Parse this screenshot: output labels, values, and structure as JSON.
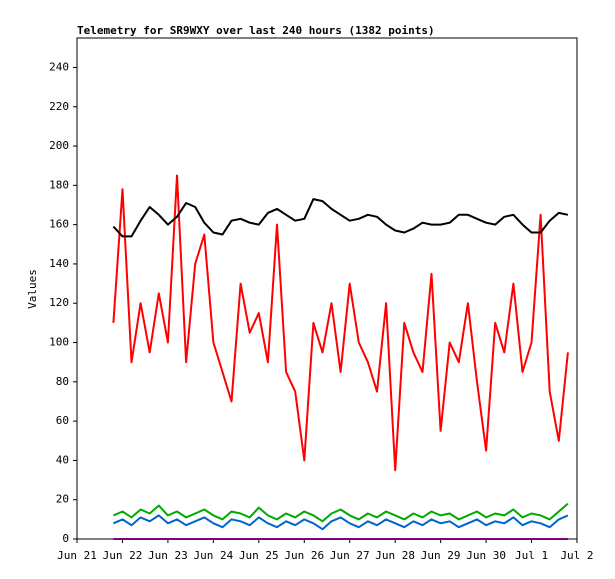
{
  "chart_data": {
    "type": "line",
    "title": "Telemetry for SR9WXY over last 240 hours (1382 points)",
    "y_label": "Values",
    "xlim": [
      0,
      11
    ],
    "xticks": [
      {
        "value": 0,
        "label": "Jun 21"
      },
      {
        "value": 1,
        "label": "Jun 22"
      },
      {
        "value": 2,
        "label": "Jun 23"
      },
      {
        "value": 3,
        "label": "Jun 24"
      },
      {
        "value": 4,
        "label": "Jun 25"
      },
      {
        "value": 5,
        "label": "Jun 26"
      },
      {
        "value": 6,
        "label": "Jun 27"
      },
      {
        "value": 7,
        "label": "Jun 28"
      },
      {
        "value": 8,
        "label": "Jun 29"
      },
      {
        "value": 9,
        "label": "Jun 30"
      },
      {
        "value": 10,
        "label": "Jul 1"
      },
      {
        "value": 11,
        "label": "Jul 2"
      }
    ],
    "ylim": [
      0,
      255
    ],
    "yticks": [
      0,
      20,
      40,
      60,
      80,
      100,
      120,
      140,
      160,
      180,
      200,
      220,
      240
    ],
    "grid": false,
    "x": [
      0.8,
      1.0,
      1.2,
      1.4,
      1.6,
      1.8,
      2.0,
      2.2,
      2.4,
      2.6,
      2.8,
      3.0,
      3.2,
      3.4,
      3.6,
      3.8,
      4.0,
      4.2,
      4.4,
      4.6,
      4.8,
      5.0,
      5.2,
      5.4,
      5.6,
      5.8,
      6.0,
      6.2,
      6.4,
      6.6,
      6.8,
      7.0,
      7.2,
      7.4,
      7.6,
      7.8,
      8.0,
      8.2,
      8.4,
      8.6,
      8.8,
      9.0,
      9.2,
      9.4,
      9.6,
      9.8,
      10.0,
      10.2,
      10.4,
      10.6,
      10.8
    ],
    "series": [
      {
        "color": "#ff0000",
        "values": [
          110,
          178,
          90,
          120,
          95,
          125,
          100,
          185,
          90,
          140,
          155,
          100,
          85,
          70,
          130,
          105,
          115,
          90,
          160,
          85,
          75,
          40,
          110,
          95,
          120,
          85,
          130,
          100,
          90,
          75,
          120,
          35,
          110,
          95,
          85,
          135,
          55,
          100,
          90,
          120,
          80,
          45,
          110,
          95,
          130,
          85,
          100,
          165,
          75,
          50,
          95
        ]
      },
      {
        "color": "#00aa00",
        "values": [
          12,
          14,
          11,
          15,
          13,
          17,
          12,
          14,
          11,
          13,
          15,
          12,
          10,
          14,
          13,
          11,
          16,
          12,
          10,
          13,
          11,
          14,
          12,
          9,
          13,
          15,
          12,
          10,
          13,
          11,
          14,
          12,
          10,
          13,
          11,
          14,
          12,
          13,
          10,
          12,
          14,
          11,
          13,
          12,
          15,
          11,
          13,
          12,
          10,
          14,
          18
        ]
      },
      {
        "color": "#0066cc",
        "values": [
          8,
          10,
          7,
          11,
          9,
          12,
          8,
          10,
          7,
          9,
          11,
          8,
          6,
          10,
          9,
          7,
          11,
          8,
          6,
          9,
          7,
          10,
          8,
          5,
          9,
          11,
          8,
          6,
          9,
          7,
          10,
          8,
          6,
          9,
          7,
          10,
          8,
          9,
          6,
          8,
          10,
          7,
          9,
          8,
          11,
          7,
          9,
          8,
          6,
          10,
          12
        ]
      },
      {
        "color": "#000000",
        "values": [
          159,
          154,
          154,
          162,
          169,
          165,
          160,
          164,
          171,
          169,
          161,
          156,
          155,
          162,
          163,
          161,
          160,
          166,
          168,
          165,
          162,
          163,
          173,
          172,
          168,
          165,
          162,
          163,
          165,
          164,
          160,
          157,
          156,
          158,
          161,
          160,
          160,
          161,
          165,
          165,
          163,
          161,
          160,
          164,
          165,
          160,
          156,
          156,
          162,
          166,
          165
        ]
      },
      {
        "color": "#800080",
        "values": [
          0,
          0,
          0,
          0,
          0,
          0,
          0,
          0,
          0,
          0,
          0,
          0,
          0,
          0,
          0,
          0,
          0,
          0,
          0,
          0,
          0,
          0,
          0,
          0,
          0,
          0,
          0,
          0,
          0,
          0,
          0,
          0,
          0,
          0,
          0,
          0,
          0,
          0,
          0,
          0,
          0,
          0,
          0,
          0,
          0,
          0,
          0,
          0,
          0,
          0,
          0
        ]
      }
    ]
  }
}
